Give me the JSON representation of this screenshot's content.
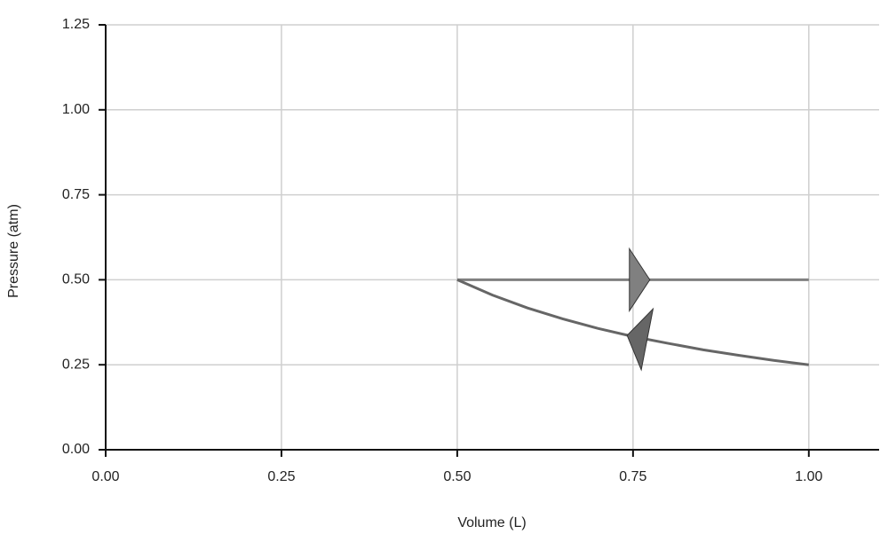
{
  "chart_data": {
    "type": "line",
    "xlabel": "Volume (L)",
    "ylabel": "Pressure (atm)",
    "xlim": [
      0,
      1.1
    ],
    "ylim": [
      0,
      1.25
    ],
    "xticks": [
      {
        "value": 0,
        "label": "0.00"
      },
      {
        "value": 0.25,
        "label": "0.25"
      },
      {
        "value": 0.5,
        "label": "0.50"
      },
      {
        "value": 0.75,
        "label": "0.75"
      },
      {
        "value": 1,
        "label": "1.00"
      }
    ],
    "yticks": [
      {
        "value": 0,
        "label": "0.00"
      },
      {
        "value": 0.25,
        "label": "0.25"
      },
      {
        "value": 0.5,
        "label": "0.50"
      },
      {
        "value": 0.75,
        "label": "0.75"
      },
      {
        "value": 1,
        "label": "1.00"
      },
      {
        "value": 1.25,
        "label": "1.25"
      }
    ],
    "grid": true,
    "series": [
      {
        "color": "#808080",
        "x": [
          0.5,
          1.0
        ],
        "values": [
          0.5,
          0.5
        ]
      },
      {
        "color": "#666666",
        "x": [
          1.0,
          0.95,
          0.9,
          0.85,
          0.8,
          0.75,
          0.7,
          0.65,
          0.6,
          0.55,
          0.5
        ],
        "values": [
          0.25,
          0.263,
          0.278,
          0.294,
          0.313,
          0.333,
          0.357,
          0.385,
          0.417,
          0.455,
          0.5
        ]
      }
    ]
  }
}
